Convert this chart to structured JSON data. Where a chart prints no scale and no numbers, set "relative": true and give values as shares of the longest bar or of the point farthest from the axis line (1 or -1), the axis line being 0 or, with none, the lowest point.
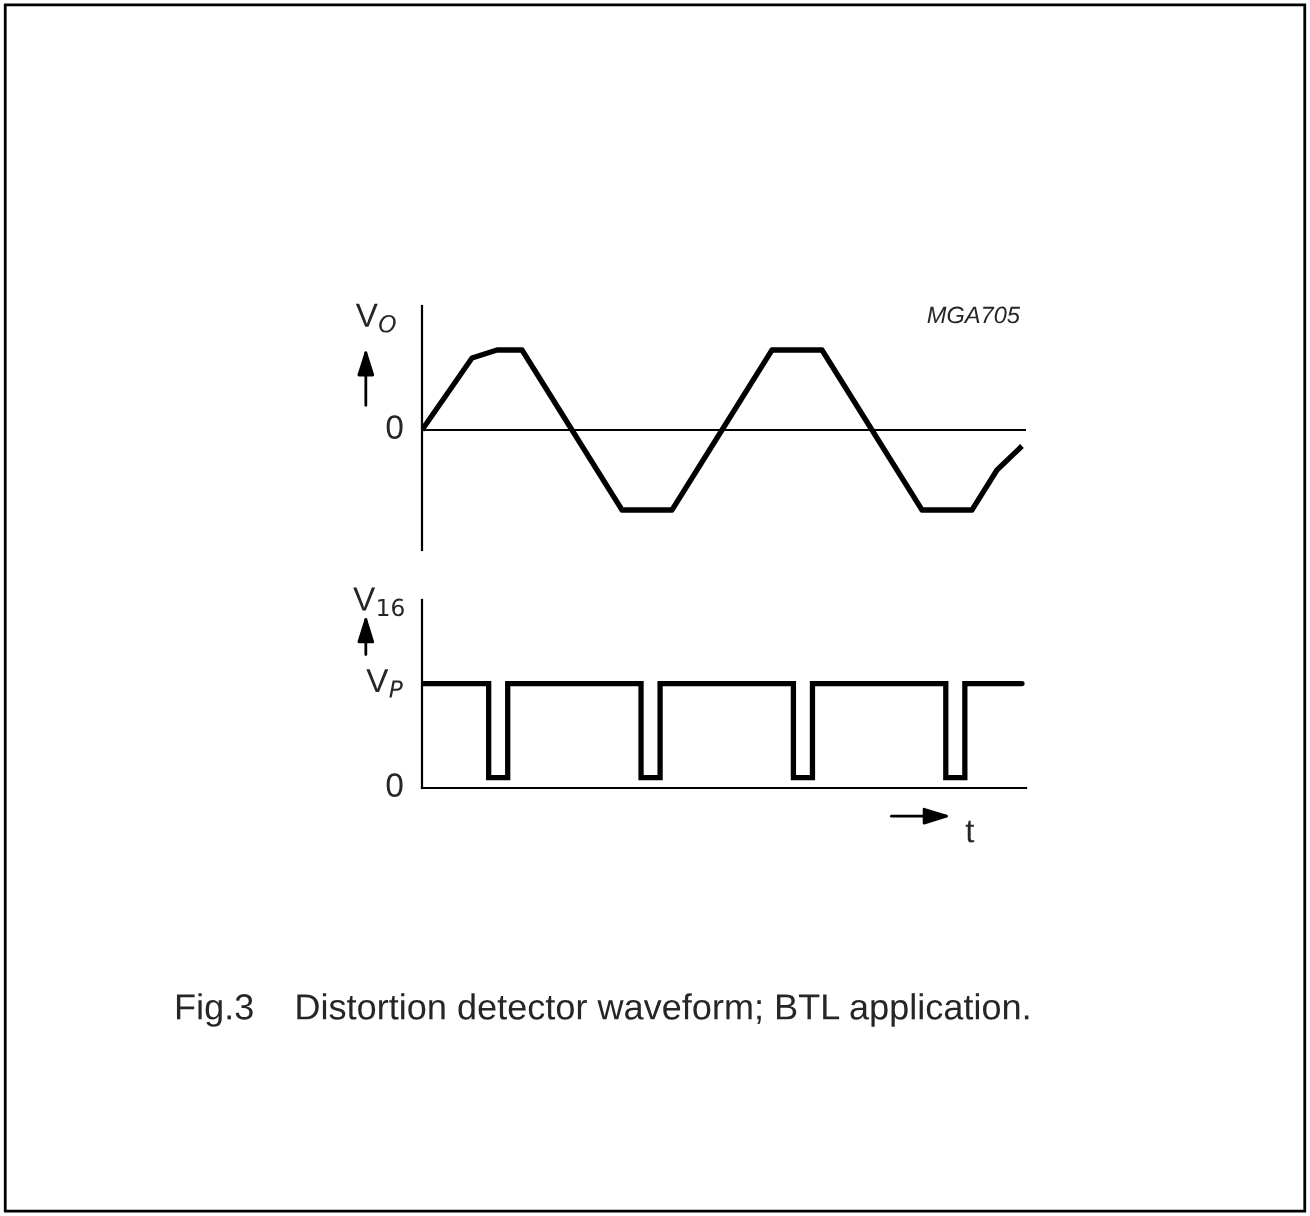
{
  "chart_data": [
    {
      "type": "line",
      "relative": true,
      "ylabel": "V$_{O}$",
      "categories": [
        null,
        null,
        null,
        null,
        null,
        null,
        null,
        null,
        null,
        null,
        null,
        null,
        null,
        null,
        null,
        null,
        null,
        null,
        null,
        null,
        null,
        null,
        null,
        null,
        null
      ],
      "series": [
        {
          "color": "#000000",
          "values": [
            0,
            0.45,
            0.9,
            1,
            1,
            0.5,
            0,
            -0.5,
            -1,
            -1,
            -1,
            -0.5,
            0,
            0.5,
            1,
            1,
            1,
            0.5,
            0,
            -0.5,
            -1,
            -1,
            -1,
            -0.5,
            -0.2
          ]
        }
      ],
      "ref_lines": [
        {
          "axis": "y",
          "value": 0,
          "color": "#000000"
        }
      ],
      "annotations": [
        "0",
        "MGA705",
        "Fig.3    Distortion detector waveform; BTL application."
      ]
    },
    {
      "type": "step",
      "ylabel": "V$_{16}$",
      "xlabel": "t",
      "categories": [
        null,
        null,
        null,
        null,
        null,
        null,
        null,
        null,
        null,
        null,
        null,
        null,
        null,
        null,
        null,
        null,
        null,
        null,
        null,
        null,
        null,
        null,
        null,
        null,
        null,
        null,
        null,
        null,
        null,
        null,
        null,
        null,
        null,
        null,
        null,
        null,
        null,
        null,
        null,
        null,
        null,
        null,
        null,
        null,
        null,
        null,
        null,
        null,
        null,
        null,
        null,
        null,
        null,
        null,
        null,
        null,
        null,
        null,
        null,
        null,
        null,
        null,
        null,
        null
      ],
      "relative": true,
      "annotations": [
        "V$_{P}$",
        "0"
      ],
      "series": [
        {
          "color": "#000000",
          "values": [
            1,
            1,
            1,
            1,
            1,
            1,
            1,
            0.1,
            0.1,
            1,
            1,
            1,
            1,
            1,
            1,
            1,
            1,
            1,
            1,
            1,
            1,
            1,
            1,
            0.1,
            0.1,
            1,
            1,
            1,
            1,
            1,
            1,
            1,
            1,
            1,
            1,
            1,
            1,
            1,
            1,
            0.1,
            0.1,
            1,
            1,
            1,
            1,
            1,
            1,
            1,
            1,
            1,
            1,
            1,
            1,
            1,
            1,
            0.1,
            0.1,
            1,
            1,
            1,
            1,
            1,
            1,
            1
          ]
        }
      ]
    }
  ]
}
